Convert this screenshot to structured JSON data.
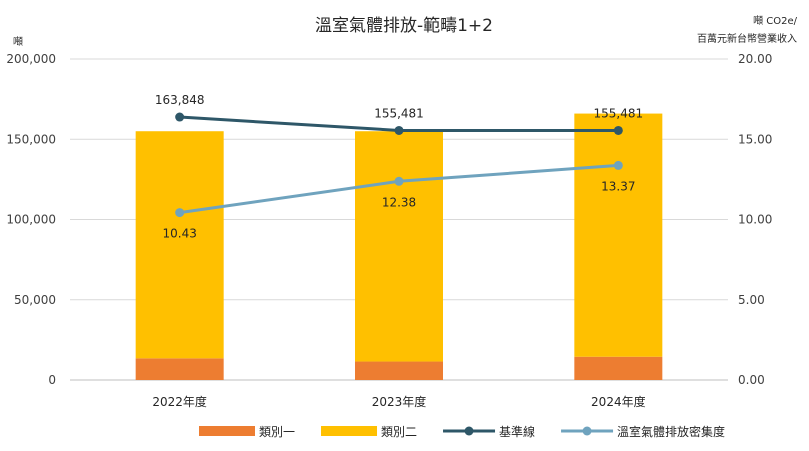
{
  "chart_data": {
    "type": "bar",
    "stacked": true,
    "title": "溫室氣體排放-範疇1+2",
    "y_left_unit": "噸",
    "y_right_unit_line1": "噸 CO2e/",
    "y_right_unit_line2": "百萬元新台幣營業收入",
    "categories": [
      "2022年度",
      "2023年度",
      "2024年度"
    ],
    "ylim_left": [
      0,
      200000
    ],
    "ylim_right": [
      0,
      20
    ],
    "y_left_ticks": [
      "0",
      "50,000",
      "100,000",
      "150,000",
      "200,000"
    ],
    "y_right_ticks": [
      "0.00",
      "5.00",
      "10.00",
      "15.00",
      "20.00"
    ],
    "grid": true,
    "legend_position": "bottom",
    "series": [
      {
        "name": "類別一",
        "kind": "bar",
        "axis": "left",
        "color": "#ED7D31",
        "values": [
          13500,
          11500,
          14500
        ]
      },
      {
        "name": "類別二",
        "kind": "bar",
        "axis": "left",
        "color": "#FFC000",
        "values": [
          141500,
          143500,
          151500
        ]
      },
      {
        "name": "基準線",
        "kind": "line",
        "axis": "left",
        "color": "#2E5768",
        "values": [
          163848,
          155481,
          155481
        ],
        "labels": [
          "163,848",
          "155,481",
          "155,481"
        ]
      },
      {
        "name": "溫室氣體排放密集度",
        "kind": "line",
        "axis": "right",
        "color": "#6FA3BE",
        "values": [
          10.43,
          12.38,
          13.37
        ],
        "labels": [
          "10.43",
          "12.38",
          "13.37"
        ]
      }
    ]
  }
}
